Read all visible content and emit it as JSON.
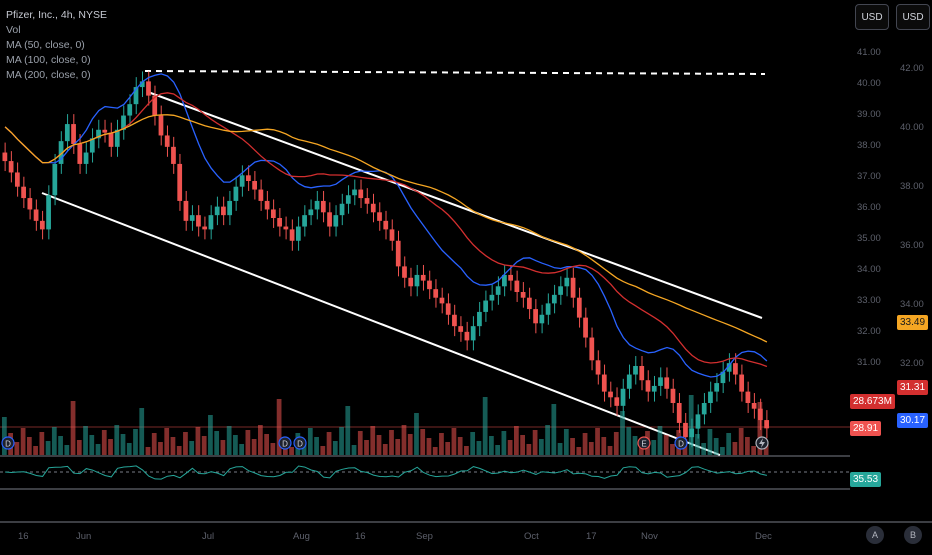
{
  "legend": {
    "title": "Pfizer, Inc., 4h, NYSE",
    "lines": [
      "Vol",
      "MA (50, close, 0)",
      "MA (100, close, 0)",
      "MA (200, close, 0)"
    ]
  },
  "toolbar": {
    "currency_left": "USD",
    "currency_right": "USD"
  },
  "price_axis_left": [
    "41.00",
    "40.00",
    "39.00",
    "38.00",
    "37.00",
    "36.00",
    "35.00",
    "34.00",
    "33.00",
    "32.00",
    "31.00"
  ],
  "price_axis_right": [
    "42.00",
    "40.00",
    "38.00",
    "36.00",
    "34.00",
    "32.00"
  ],
  "time_axis": [
    "16",
    "Jun",
    "Jul",
    "Aug",
    "16",
    "Sep",
    "Oct",
    "17",
    "Nov",
    "Dec"
  ],
  "price_labels": {
    "ma200": "33.49",
    "ma100": "31.31",
    "volume": "28.673M",
    "ma50": "30.17",
    "last_price": "28.91",
    "rsi": "35.53"
  },
  "event_markers": [
    "D",
    "D",
    "D",
    "E",
    "D"
  ],
  "bottom_buttons": {
    "a": "A",
    "b": "B"
  },
  "colors": {
    "background": "#000000",
    "up": "#26a69a",
    "down": "#ef5350",
    "ma50": "#2962ff",
    "ma100": "#d32f2f",
    "ma200": "#f5a623",
    "channel": "#ffffff",
    "rsi": "#26a69a"
  },
  "chart_data": {
    "type": "candlestick",
    "title": "Pfizer, Inc., 4h, NYSE",
    "close": [
      38.3,
      37.9,
      37.4,
      37.0,
      36.6,
      36.2,
      35.9,
      37.1,
      38.2,
      39.0,
      39.6,
      38.9,
      38.2,
      38.6,
      39.1,
      39.4,
      39.3,
      38.8,
      39.4,
      39.9,
      40.3,
      40.9,
      41.1,
      40.6,
      39.9,
      39.2,
      38.8,
      38.2,
      36.9,
      36.2,
      36.4,
      36.0,
      35.9,
      36.4,
      36.7,
      36.4,
      36.9,
      37.4,
      37.8,
      37.6,
      37.3,
      36.9,
      36.6,
      36.3,
      36.0,
      35.9,
      35.5,
      36.0,
      36.4,
      36.6,
      36.9,
      36.5,
      36.0,
      36.4,
      36.8,
      37.1,
      37.3,
      37.0,
      36.8,
      36.5,
      36.2,
      35.9,
      35.5,
      34.6,
      34.2,
      33.9,
      34.3,
      34.1,
      33.8,
      33.5,
      33.3,
      32.9,
      32.5,
      32.3,
      32.0,
      32.5,
      33.0,
      33.4,
      33.6,
      33.9,
      34.3,
      34.1,
      33.7,
      33.5,
      33.1,
      32.6,
      32.9,
      33.3,
      33.6,
      33.9,
      34.2,
      33.5,
      32.8,
      32.1,
      31.3,
      30.8,
      30.2,
      30.0,
      29.7,
      30.3,
      30.8,
      31.1,
      30.6,
      30.2,
      30.4,
      30.7,
      30.3,
      29.8,
      29.1,
      28.6,
      28.9,
      29.4,
      29.8,
      30.2,
      30.5,
      30.9,
      31.2,
      30.8,
      30.2,
      29.8,
      29.6,
      29.2,
      28.91
    ]
  }
}
